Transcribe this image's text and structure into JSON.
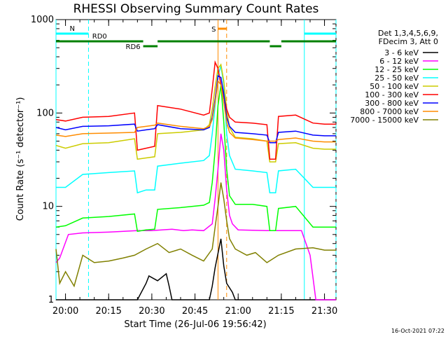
{
  "chart_data": {
    "type": "line",
    "title": "RHESSI Observing Summary Count Rates",
    "xlabel": "Start Time (26-Jul-06 19:56:42)",
    "ylabel": "Count Rate (s⁻¹ detector⁻¹)",
    "y_scale": "log",
    "ylim": [
      1,
      1000
    ],
    "xlim": [
      "19:56:42",
      "21:34:00"
    ],
    "x_ticks": [
      "20:00",
      "20:15",
      "20:30",
      "20:45",
      "21:00",
      "21:15",
      "21:30"
    ],
    "y_ticks": [
      "1",
      "10",
      "100",
      "1000"
    ],
    "legend": {
      "position": "right",
      "header": [
        "Det 1,3,4,5,6,9,",
        "FDecim 3, Att 0"
      ]
    },
    "series": [
      {
        "name": "3 - 6 keV",
        "color": "#000000",
        "values": [
          [
            "19:56:42",
            0
          ],
          [
            "20:25",
            0
          ],
          [
            "20:28",
            1.5
          ],
          [
            "20:29",
            1.8
          ],
          [
            "20:32",
            1.6
          ],
          [
            "20:35",
            1.9
          ],
          [
            "20:36",
            1.4
          ],
          [
            "20:37",
            0
          ],
          [
            "20:41",
            0
          ],
          [
            "20:50",
            0
          ],
          [
            "20:51",
            1.4
          ],
          [
            "20:52",
            2.2
          ],
          [
            "20:54",
            4.5
          ],
          [
            "20:55",
            2.3
          ],
          [
            "20:56",
            1.5
          ],
          [
            "20:58",
            1.2
          ],
          [
            "20:59",
            0
          ],
          [
            "21:34",
            0
          ]
        ]
      },
      {
        "name": "6 - 12 keV",
        "color": "#ff00ff",
        "values": [
          [
            "19:56:42",
            2.5
          ],
          [
            "19:58",
            2.8
          ],
          [
            "20:01",
            5.0
          ],
          [
            "20:06",
            5.2
          ],
          [
            "20:15",
            5.3
          ],
          [
            "20:25",
            5.5
          ],
          [
            "20:30",
            5.5
          ],
          [
            "20:37",
            5.7
          ],
          [
            "20:41",
            5.5
          ],
          [
            "20:44",
            5.6
          ],
          [
            "20:48",
            5.5
          ],
          [
            "20:51",
            6.5
          ],
          [
            "20:52",
            12
          ],
          [
            "20:53",
            25
          ],
          [
            "20:54",
            60
          ],
          [
            "20:55",
            40
          ],
          [
            "20:56",
            15
          ],
          [
            "20:57",
            8
          ],
          [
            "20:58",
            6.5
          ],
          [
            "21:00",
            5.6
          ],
          [
            "21:10",
            5.5
          ],
          [
            "21:15",
            5.5
          ],
          [
            "21:22",
            5.5
          ],
          [
            "21:25",
            3.0
          ],
          [
            "21:27",
            0.9
          ],
          [
            "21:32",
            0.9
          ],
          [
            "21:34",
            0.9
          ]
        ]
      },
      {
        "name": "12 - 25 keV",
        "color": "#00ff00",
        "values": [
          [
            "19:56:42",
            6.0
          ],
          [
            "20:00",
            6.2
          ],
          [
            "20:06",
            7.5
          ],
          [
            "20:15",
            7.8
          ],
          [
            "20:24",
            8.3
          ],
          [
            "20:25",
            5.4
          ],
          [
            "20:28",
            5.6
          ],
          [
            "20:31",
            5.7
          ],
          [
            "20:32",
            9.3
          ],
          [
            "20:40",
            9.7
          ],
          [
            "20:48",
            10.3
          ],
          [
            "20:50",
            11
          ],
          [
            "20:51",
            18
          ],
          [
            "20:52",
            40
          ],
          [
            "20:53",
            120
          ],
          [
            "20:54",
            200
          ],
          [
            "20:55",
            80
          ],
          [
            "20:56",
            25
          ],
          [
            "20:57",
            13
          ],
          [
            "20:59",
            10.5
          ],
          [
            "21:05",
            10.5
          ],
          [
            "21:10",
            10
          ],
          [
            "21:11",
            5.5
          ],
          [
            "21:13",
            5.5
          ],
          [
            "21:14",
            9.5
          ],
          [
            "21:20",
            10
          ],
          [
            "21:26",
            6.0
          ],
          [
            "21:30",
            6.0
          ],
          [
            "21:34",
            6.0
          ]
        ]
      },
      {
        "name": "25 - 50 keV",
        "color": "#00ffff",
        "values": [
          [
            "19:56:42",
            16
          ],
          [
            "20:00",
            16
          ],
          [
            "20:06",
            22
          ],
          [
            "20:15",
            23
          ],
          [
            "20:24",
            24
          ],
          [
            "20:25",
            14
          ],
          [
            "20:28",
            15
          ],
          [
            "20:31",
            15
          ],
          [
            "20:32",
            27
          ],
          [
            "20:40",
            29
          ],
          [
            "20:48",
            31
          ],
          [
            "20:50",
            35
          ],
          [
            "20:51",
            60
          ],
          [
            "20:52",
            120
          ],
          [
            "20:53",
            250
          ],
          [
            "20:54",
            320
          ],
          [
            "20:55",
            200
          ],
          [
            "20:56",
            60
          ],
          [
            "20:57",
            35
          ],
          [
            "20:59",
            25
          ],
          [
            "21:05",
            24
          ],
          [
            "21:10",
            23
          ],
          [
            "21:11",
            14
          ],
          [
            "21:13",
            14
          ],
          [
            "21:14",
            24
          ],
          [
            "21:20",
            25
          ],
          [
            "21:26",
            16
          ],
          [
            "21:30",
            16
          ],
          [
            "21:34",
            16
          ]
        ]
      },
      {
        "name": "50 - 100 keV",
        "color": "#cccc00",
        "values": [
          [
            "19:56:42",
            45
          ],
          [
            "20:00",
            42
          ],
          [
            "20:06",
            47
          ],
          [
            "20:15",
            48
          ],
          [
            "20:24",
            53
          ],
          [
            "20:25",
            32
          ],
          [
            "20:28",
            33
          ],
          [
            "20:31",
            34
          ],
          [
            "20:32",
            60
          ],
          [
            "20:40",
            62
          ],
          [
            "20:48",
            66
          ],
          [
            "20:50",
            75
          ],
          [
            "20:51",
            110
          ],
          [
            "20:52",
            190
          ],
          [
            "20:53",
            300
          ],
          [
            "20:54",
            330
          ],
          [
            "20:55",
            220
          ],
          [
            "20:56",
            110
          ],
          [
            "20:57",
            70
          ],
          [
            "20:59",
            55
          ],
          [
            "21:05",
            53
          ],
          [
            "21:10",
            50
          ],
          [
            "21:11",
            30
          ],
          [
            "21:13",
            30
          ],
          [
            "21:14",
            47
          ],
          [
            "21:20",
            48
          ],
          [
            "21:26",
            42
          ],
          [
            "21:30",
            41
          ],
          [
            "21:34",
            41
          ]
        ]
      },
      {
        "name": "100 - 300 keV",
        "color": "#ff0000",
        "values": [
          [
            "19:56:42",
            85
          ],
          [
            "20:00",
            82
          ],
          [
            "20:06",
            90
          ],
          [
            "20:15",
            92
          ],
          [
            "20:24",
            100
          ],
          [
            "20:25",
            40
          ],
          [
            "20:28",
            42
          ],
          [
            "20:31",
            44
          ],
          [
            "20:32",
            120
          ],
          [
            "20:40",
            110
          ],
          [
            "20:48",
            95
          ],
          [
            "20:50",
            100
          ],
          [
            "20:51",
            180
          ],
          [
            "20:52",
            350
          ],
          [
            "20:53",
            300
          ],
          [
            "20:54",
            200
          ],
          [
            "20:55",
            150
          ],
          [
            "20:56",
            110
          ],
          [
            "20:57",
            90
          ],
          [
            "20:59",
            80
          ],
          [
            "21:05",
            78
          ],
          [
            "21:10",
            75
          ],
          [
            "21:11",
            32
          ],
          [
            "21:13",
            32
          ],
          [
            "21:14",
            92
          ],
          [
            "21:20",
            95
          ],
          [
            "21:26",
            78
          ],
          [
            "21:30",
            76
          ],
          [
            "21:34",
            76
          ]
        ]
      },
      {
        "name": "300 - 800 keV",
        "color": "#0000ff",
        "values": [
          [
            "19:56:42",
            70
          ],
          [
            "20:00",
            66
          ],
          [
            "20:06",
            72
          ],
          [
            "20:15",
            73
          ],
          [
            "20:24",
            76
          ],
          [
            "20:25",
            64
          ],
          [
            "20:28",
            66
          ],
          [
            "20:31",
            68
          ],
          [
            "20:32",
            75
          ],
          [
            "20:40",
            68
          ],
          [
            "20:48",
            66
          ],
          [
            "20:50",
            70
          ],
          [
            "20:51",
            90
          ],
          [
            "20:52",
            140
          ],
          [
            "20:53",
            250
          ],
          [
            "20:54",
            240
          ],
          [
            "20:55",
            160
          ],
          [
            "20:56",
            90
          ],
          [
            "20:57",
            72
          ],
          [
            "20:59",
            62
          ],
          [
            "21:05",
            60
          ],
          [
            "21:10",
            58
          ],
          [
            "21:11",
            48
          ],
          [
            "21:13",
            48
          ],
          [
            "21:14",
            62
          ],
          [
            "21:20",
            64
          ],
          [
            "21:26",
            58
          ],
          [
            "21:30",
            57
          ],
          [
            "21:34",
            57
          ]
        ]
      },
      {
        "name": "800 - 7000 keV",
        "color": "#ff8c00",
        "values": [
          [
            "19:56:42",
            58
          ],
          [
            "20:00",
            56
          ],
          [
            "20:06",
            60
          ],
          [
            "20:15",
            61
          ],
          [
            "20:24",
            62
          ],
          [
            "20:25",
            70
          ],
          [
            "20:28",
            72
          ],
          [
            "20:31",
            74
          ],
          [
            "20:32",
            78
          ],
          [
            "20:40",
            72
          ],
          [
            "20:48",
            68
          ],
          [
            "20:50",
            72
          ],
          [
            "20:51",
            85
          ],
          [
            "20:52",
            130
          ],
          [
            "20:53",
            220
          ],
          [
            "20:54",
            200
          ],
          [
            "20:55",
            130
          ],
          [
            "20:56",
            80
          ],
          [
            "20:57",
            62
          ],
          [
            "20:59",
            54
          ],
          [
            "21:05",
            52
          ],
          [
            "21:10",
            50
          ],
          [
            "21:11",
            50
          ],
          [
            "21:13",
            50
          ],
          [
            "21:14",
            52
          ],
          [
            "21:20",
            54
          ],
          [
            "21:26",
            50
          ],
          [
            "21:30",
            49
          ],
          [
            "21:34",
            49
          ]
        ]
      },
      {
        "name": "7000 - 15000 keV",
        "color": "#808000",
        "values": [
          [
            "19:56:42",
            3.5
          ],
          [
            "19:58",
            1.5
          ],
          [
            "20:00",
            2.0
          ],
          [
            "20:03",
            1.4
          ],
          [
            "20:06",
            3.0
          ],
          [
            "20:10",
            2.5
          ],
          [
            "20:15",
            2.6
          ],
          [
            "20:20",
            2.8
          ],
          [
            "20:24",
            3.0
          ],
          [
            "20:28",
            3.5
          ],
          [
            "20:32",
            4.0
          ],
          [
            "20:36",
            3.2
          ],
          [
            "20:40",
            3.5
          ],
          [
            "20:44",
            3.0
          ],
          [
            "20:48",
            2.6
          ],
          [
            "20:51",
            3.5
          ],
          [
            "20:52",
            6.0
          ],
          [
            "20:53",
            10
          ],
          [
            "20:54",
            18
          ],
          [
            "20:55",
            12
          ],
          [
            "20:56",
            7.0
          ],
          [
            "20:57",
            4.5
          ],
          [
            "20:59",
            3.5
          ],
          [
            "21:03",
            3.0
          ],
          [
            "21:06",
            3.2
          ],
          [
            "21:10",
            2.5
          ],
          [
            "21:14",
            3.0
          ],
          [
            "21:20",
            3.5
          ],
          [
            "21:26",
            3.6
          ],
          [
            "21:30",
            3.4
          ],
          [
            "21:34",
            3.4
          ]
        ]
      }
    ],
    "annotations": {
      "verticals": [
        {
          "time": "19:56:42",
          "color": "#00ffff",
          "style": "solid"
        },
        {
          "time": "20:08",
          "color": "#00ffff",
          "style": "dashed"
        },
        {
          "time": "20:53",
          "color": "#ff8c00",
          "style": "solid"
        },
        {
          "time": "20:56",
          "color": "#ff8c00",
          "style": "dashed"
        },
        {
          "time": "21:23",
          "color": "#00ffff",
          "style": "solid"
        },
        {
          "time": "21:34",
          "color": "#00ffff",
          "style": "dashed"
        }
      ],
      "bars": [
        {
          "label": "N",
          "color": "#00ffff",
          "from": "19:56:42",
          "to": "20:08",
          "level": "top"
        },
        {
          "label": "",
          "color": "#00ffff",
          "from": "21:23",
          "to": "21:34",
          "level": "top"
        },
        {
          "label": "S",
          "color": "#ff8c00",
          "from": "20:53",
          "to": "20:56",
          "level": "upper"
        },
        {
          "label": "RD0",
          "color": "#008000",
          "from": "19:56:42",
          "to": "20:27",
          "level": "middle"
        },
        {
          "label": "",
          "color": "#008000",
          "from": "20:32",
          "to": "21:11",
          "level": "middle"
        },
        {
          "label": "",
          "color": "#008000",
          "from": "21:15",
          "to": "21:34",
          "level": "middle"
        },
        {
          "label": "RD6",
          "color": "#008000",
          "from": "20:27",
          "to": "20:32",
          "level": "lower"
        },
        {
          "label": "",
          "color": "#008000",
          "from": "21:11",
          "to": "21:15",
          "level": "lower"
        }
      ]
    }
  },
  "date_stamp": "16-Oct-2021 07:22"
}
